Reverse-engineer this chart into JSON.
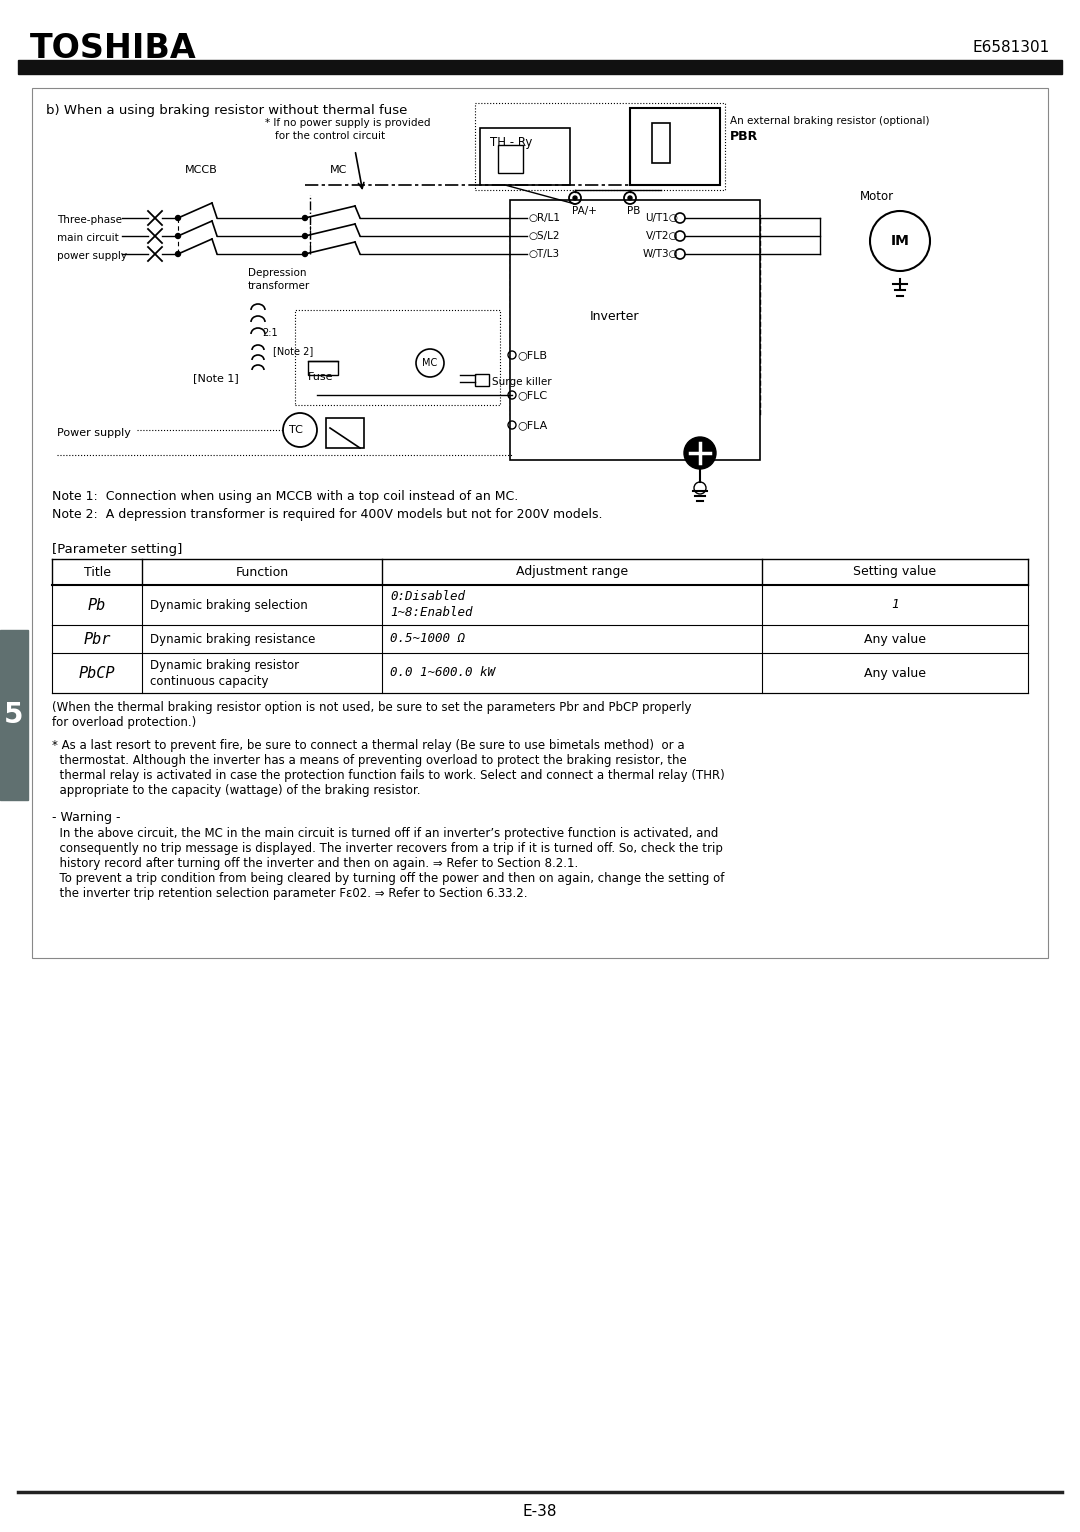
{
  "header_title": "TOSHIBA",
  "header_code": "E6581301",
  "page_number": "E-38",
  "section_number": "5",
  "bg_color": "#ffffff",
  "header_bar_color": "#111111",
  "section_tab_color": "#607070",
  "box_title": "b) When a using braking resistor without thermal fuse",
  "note1": "Note 1:  Connection when using an MCCB with a top coil instead of an MC.",
  "note2": "Note 2:  A depression transformer is required for 400V models but not for 200V models.",
  "param_heading": "[Parameter setting]",
  "table_headers": [
    "Title",
    "Function",
    "Adjustment range",
    "Setting value"
  ],
  "table_rows": [
    [
      "Pb",
      "Dynamic braking selection",
      "0:Disabled\n1~8:Enabled",
      "1"
    ],
    [
      "Pbr",
      "Dynamic braking resistance",
      "0.5~1000 Ω",
      "Any value"
    ],
    [
      "PbCP",
      "Dynamic braking resistor\ncontinuous capacity",
      "0.0 1~600.0 kW",
      "Any value"
    ]
  ],
  "note_table": "(When the thermal braking resistor option is not used, be sure to set the parameters Pbr and PbCP properly\nfor overload protection.)",
  "note_fire": "* As a last resort to prevent fire, be sure to connect a thermal relay (Be sure to use bimetals method)  or a\n  thermostat. Although the inverter has a means of preventing overload to protect the braking resistor, the\n  thermal relay is activated in case the protection function fails to work. Select and connect a thermal relay (THR)\n  appropriate to the capacity (wattage) of the braking resistor.",
  "warning_title": "- Warning -",
  "warning_text": "  In the above circuit, the MC in the main circuit is turned off if an inverter’s protective function is activated, and\n  consequently no trip message is displayed. The inverter recovers from a trip if it is turned off. So, check the trip\n  history record after turning off the inverter and then on again. ⇒ Refer to Section 8.2.1.\n  To prevent a trip condition from being cleared by turning off the power and then on again, change the setting of\n  the inverter trip retention selection parameter Fε02. ⇒ Refer to Section 6.33.2."
}
